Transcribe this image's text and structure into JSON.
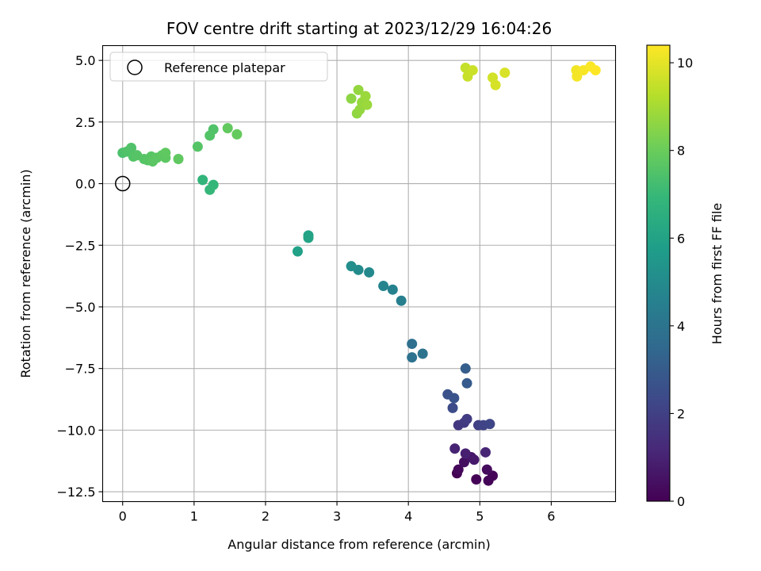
{
  "chart_data": {
    "type": "scatter",
    "title": "FOV centre drift starting at 2023/12/29 16:04:26",
    "xlabel": "Angular distance from reference (arcmin)",
    "ylabel": "Rotation from reference (arcmin)",
    "xlim": [
      -0.28,
      6.9
    ],
    "ylim": [
      -12.9,
      5.6
    ],
    "x_ticks": [
      0,
      1,
      2,
      3,
      4,
      5,
      6
    ],
    "x_tick_labels": [
      "0",
      "1",
      "2",
      "3",
      "4",
      "5",
      "6"
    ],
    "y_ticks": [
      5.0,
      2.5,
      0.0,
      -2.5,
      -5.0,
      -7.5,
      -10.0,
      -12.5
    ],
    "y_tick_labels": [
      "5.0",
      "2.5",
      "0.0",
      "−2.5",
      "−5.0",
      "−7.5",
      "−10.0",
      "−12.5"
    ],
    "grid": true,
    "legend": {
      "placement": "top-left",
      "entries": [
        "Reference platepar"
      ]
    },
    "reference_point": {
      "x": 0.0,
      "y": 0.0,
      "marker": "open-circle",
      "color": "#000000"
    },
    "colorbar": {
      "label": "Hours from first FF file",
      "range": [
        0,
        10.4
      ],
      "ticks": [
        0,
        2,
        4,
        6,
        8,
        10
      ],
      "tick_labels": [
        "0",
        "2",
        "4",
        "6",
        "8",
        "10"
      ],
      "colormap": "viridis",
      "colormap_stops": [
        "#440154",
        "#482878",
        "#3e4989",
        "#31688e",
        "#26828e",
        "#1f9e89",
        "#35b779",
        "#6ece58",
        "#b5de2b",
        "#fde725"
      ]
    },
    "points": [
      {
        "x": 4.68,
        "y": -11.75,
        "t": 0.0
      },
      {
        "x": 4.95,
        "y": -12.0,
        "t": 0.05
      },
      {
        "x": 5.12,
        "y": -12.05,
        "t": 0.1
      },
      {
        "x": 5.18,
        "y": -11.85,
        "t": 0.15
      },
      {
        "x": 4.7,
        "y": -11.6,
        "t": 0.2
      },
      {
        "x": 5.1,
        "y": -11.6,
        "t": 0.3
      },
      {
        "x": 4.78,
        "y": -11.3,
        "t": 0.4
      },
      {
        "x": 4.88,
        "y": -11.1,
        "t": 0.6
      },
      {
        "x": 4.92,
        "y": -11.2,
        "t": 0.7
      },
      {
        "x": 4.8,
        "y": -10.95,
        "t": 0.9
      },
      {
        "x": 4.65,
        "y": -10.75,
        "t": 1.0
      },
      {
        "x": 5.08,
        "y": -10.9,
        "t": 1.1
      },
      {
        "x": 4.7,
        "y": -9.8,
        "t": 1.7
      },
      {
        "x": 4.78,
        "y": -9.7,
        "t": 1.8
      },
      {
        "x": 4.82,
        "y": -9.55,
        "t": 1.9
      },
      {
        "x": 4.98,
        "y": -9.8,
        "t": 2.0
      },
      {
        "x": 5.05,
        "y": -9.8,
        "t": 2.1
      },
      {
        "x": 5.14,
        "y": -9.75,
        "t": 2.2
      },
      {
        "x": 4.62,
        "y": -9.1,
        "t": 2.4
      },
      {
        "x": 4.55,
        "y": -8.55,
        "t": 2.6
      },
      {
        "x": 4.64,
        "y": -8.7,
        "t": 2.7
      },
      {
        "x": 4.82,
        "y": -8.1,
        "t": 3.0
      },
      {
        "x": 4.8,
        "y": -7.5,
        "t": 3.1
      },
      {
        "x": 4.05,
        "y": -6.5,
        "t": 3.8
      },
      {
        "x": 4.05,
        "y": -7.05,
        "t": 3.9
      },
      {
        "x": 4.2,
        "y": -6.9,
        "t": 4.0
      },
      {
        "x": 3.9,
        "y": -4.75,
        "t": 4.5
      },
      {
        "x": 3.78,
        "y": -4.3,
        "t": 4.6
      },
      {
        "x": 3.65,
        "y": -4.15,
        "t": 4.7
      },
      {
        "x": 3.45,
        "y": -3.6,
        "t": 4.9
      },
      {
        "x": 3.3,
        "y": -3.5,
        "t": 5.0
      },
      {
        "x": 3.2,
        "y": -3.35,
        "t": 5.1
      },
      {
        "x": 2.45,
        "y": -2.75,
        "t": 5.9
      },
      {
        "x": 2.6,
        "y": -2.1,
        "t": 6.0
      },
      {
        "x": 2.6,
        "y": -2.2,
        "t": 6.05
      },
      {
        "x": 1.12,
        "y": 0.15,
        "t": 6.8
      },
      {
        "x": 1.27,
        "y": -0.05,
        "t": 6.9
      },
      {
        "x": 1.22,
        "y": -0.25,
        "t": 6.95
      },
      {
        "x": 0.0,
        "y": 1.25,
        "t": 7.4
      },
      {
        "x": 0.06,
        "y": 1.3,
        "t": 7.5
      },
      {
        "x": 0.12,
        "y": 1.45,
        "t": 7.5
      },
      {
        "x": 0.15,
        "y": 1.1,
        "t": 7.55
      },
      {
        "x": 0.2,
        "y": 1.15,
        "t": 7.6
      },
      {
        "x": 0.3,
        "y": 1.0,
        "t": 7.6
      },
      {
        "x": 0.35,
        "y": 0.95,
        "t": 7.65
      },
      {
        "x": 0.4,
        "y": 1.1,
        "t": 7.65
      },
      {
        "x": 0.42,
        "y": 0.9,
        "t": 7.7
      },
      {
        "x": 0.48,
        "y": 1.05,
        "t": 7.7
      },
      {
        "x": 0.55,
        "y": 1.15,
        "t": 7.75
      },
      {
        "x": 0.6,
        "y": 1.05,
        "t": 7.75
      },
      {
        "x": 0.6,
        "y": 1.25,
        "t": 7.8
      },
      {
        "x": 0.78,
        "y": 1.0,
        "t": 7.8
      },
      {
        "x": 1.05,
        "y": 1.5,
        "t": 7.6
      },
      {
        "x": 1.22,
        "y": 1.95,
        "t": 7.55
      },
      {
        "x": 1.27,
        "y": 2.2,
        "t": 7.5
      },
      {
        "x": 1.47,
        "y": 2.25,
        "t": 7.85
      },
      {
        "x": 1.6,
        "y": 2.0,
        "t": 7.9
      },
      {
        "x": 3.2,
        "y": 3.45,
        "t": 8.6
      },
      {
        "x": 3.28,
        "y": 2.85,
        "t": 8.65
      },
      {
        "x": 3.3,
        "y": 3.8,
        "t": 8.7
      },
      {
        "x": 3.32,
        "y": 3.0,
        "t": 8.7
      },
      {
        "x": 3.35,
        "y": 3.3,
        "t": 8.75
      },
      {
        "x": 3.4,
        "y": 3.55,
        "t": 8.8
      },
      {
        "x": 3.42,
        "y": 3.2,
        "t": 8.8
      },
      {
        "x": 4.8,
        "y": 4.7,
        "t": 9.5
      },
      {
        "x": 4.83,
        "y": 4.35,
        "t": 9.55
      },
      {
        "x": 4.9,
        "y": 4.6,
        "t": 9.6
      },
      {
        "x": 5.18,
        "y": 4.3,
        "t": 9.7
      },
      {
        "x": 5.22,
        "y": 4.0,
        "t": 9.75
      },
      {
        "x": 5.35,
        "y": 4.5,
        "t": 9.8
      },
      {
        "x": 6.35,
        "y": 4.6,
        "t": 10.2
      },
      {
        "x": 6.36,
        "y": 4.35,
        "t": 10.25
      },
      {
        "x": 6.45,
        "y": 4.6,
        "t": 10.3
      },
      {
        "x": 6.55,
        "y": 4.75,
        "t": 10.35
      },
      {
        "x": 6.62,
        "y": 4.6,
        "t": 10.4
      }
    ]
  }
}
